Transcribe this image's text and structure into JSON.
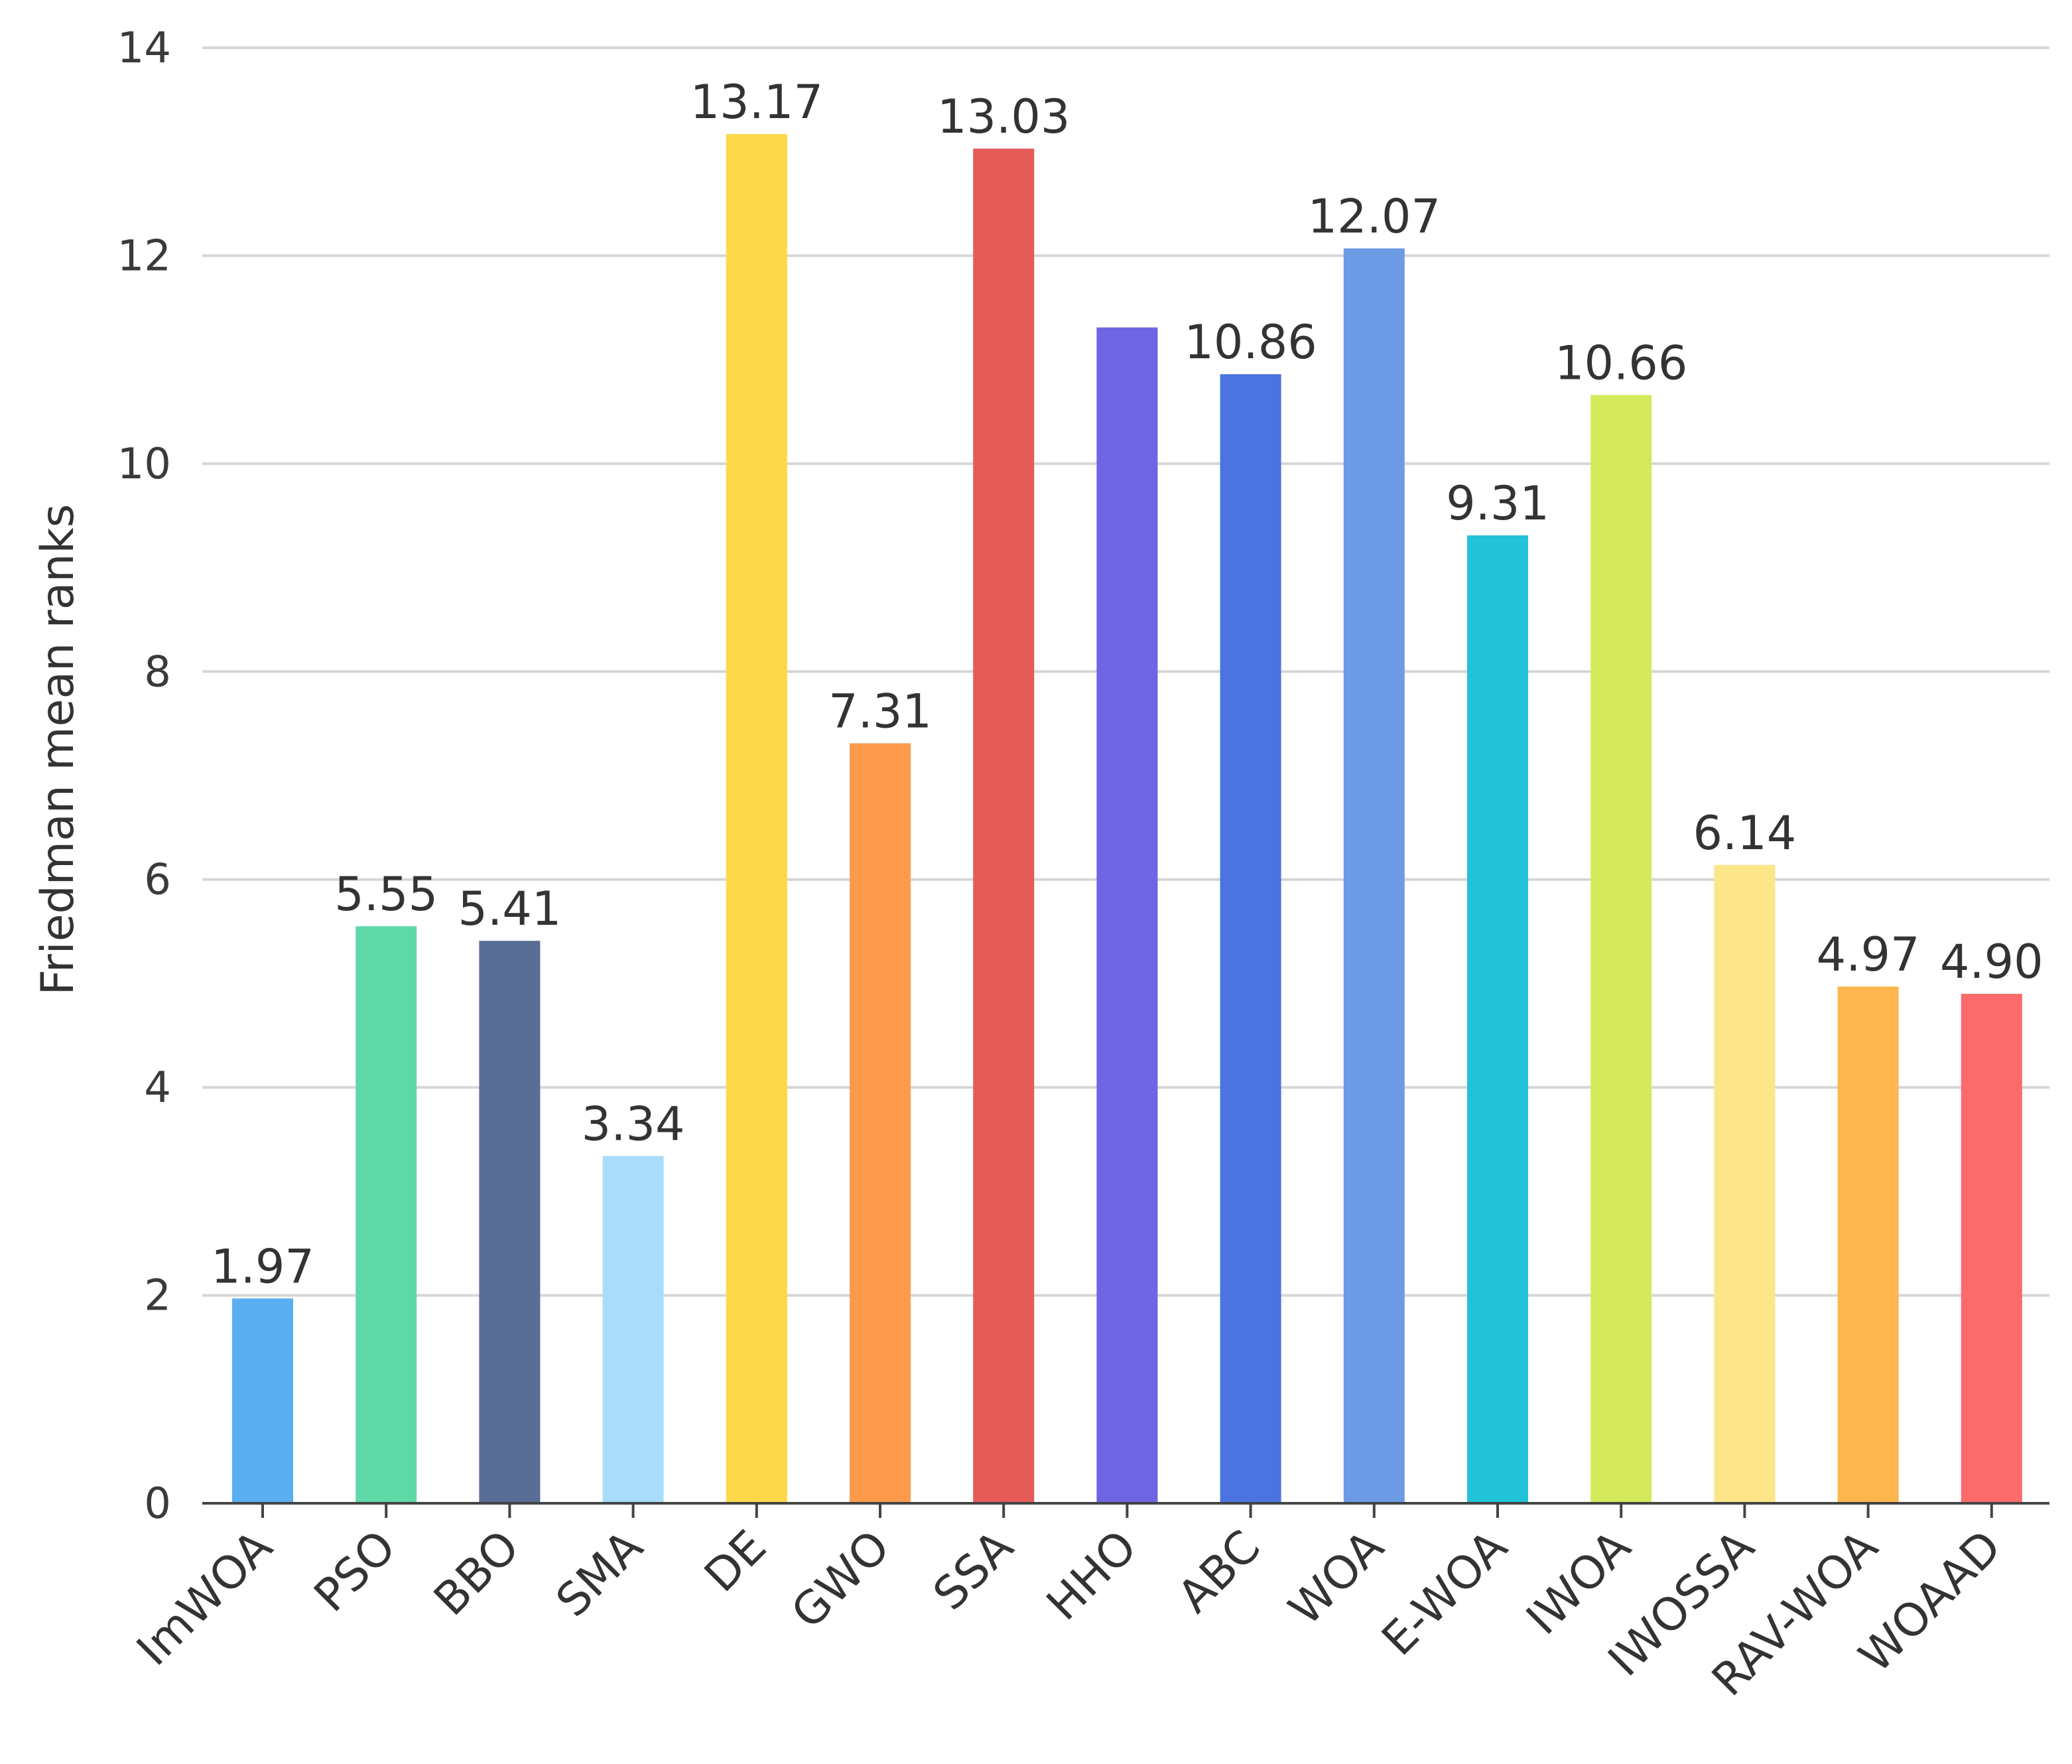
{
  "chart_data": {
    "type": "bar",
    "title": "",
    "xlabel": "",
    "ylabel": "Friedman mean ranks",
    "ylim": [
      0,
      14
    ],
    "yticks": [
      0,
      2,
      4,
      6,
      8,
      10,
      12,
      14
    ],
    "grid": true,
    "categories": [
      "ImWOA",
      "PSO",
      "BBO",
      "SMA",
      "DE",
      "GWO",
      "SSA",
      "HHO",
      "ABC",
      "WOA",
      "E-WOA",
      "IWOA",
      "IWOSSA",
      "RAV-WOA",
      "WOAAD"
    ],
    "values": [
      1.97,
      5.55,
      5.41,
      3.34,
      13.17,
      7.31,
      13.03,
      11.31,
      10.86,
      12.07,
      9.31,
      10.66,
      6.14,
      4.97,
      4.9
    ],
    "data_labels": [
      "1.97",
      "5.55",
      "5.41",
      "3.34",
      "13.17",
      "7.31",
      "13.03",
      "",
      "10.86",
      "12.07",
      "9.31",
      "10.66",
      "6.14",
      "4.97",
      "4.90"
    ],
    "colors": [
      "#5aaef2",
      "#5fd8a8",
      "#5a6d94",
      "#a8dcf8",
      "#fdd94a",
      "#fd9a4c",
      "#e55b57",
      "#6f64e2",
      "#4b74e0",
      "#6c9ae5",
      "#22c2d8",
      "#d4ea5c",
      "#fde58a",
      "#fdb64e",
      "#fb6b6b"
    ]
  }
}
